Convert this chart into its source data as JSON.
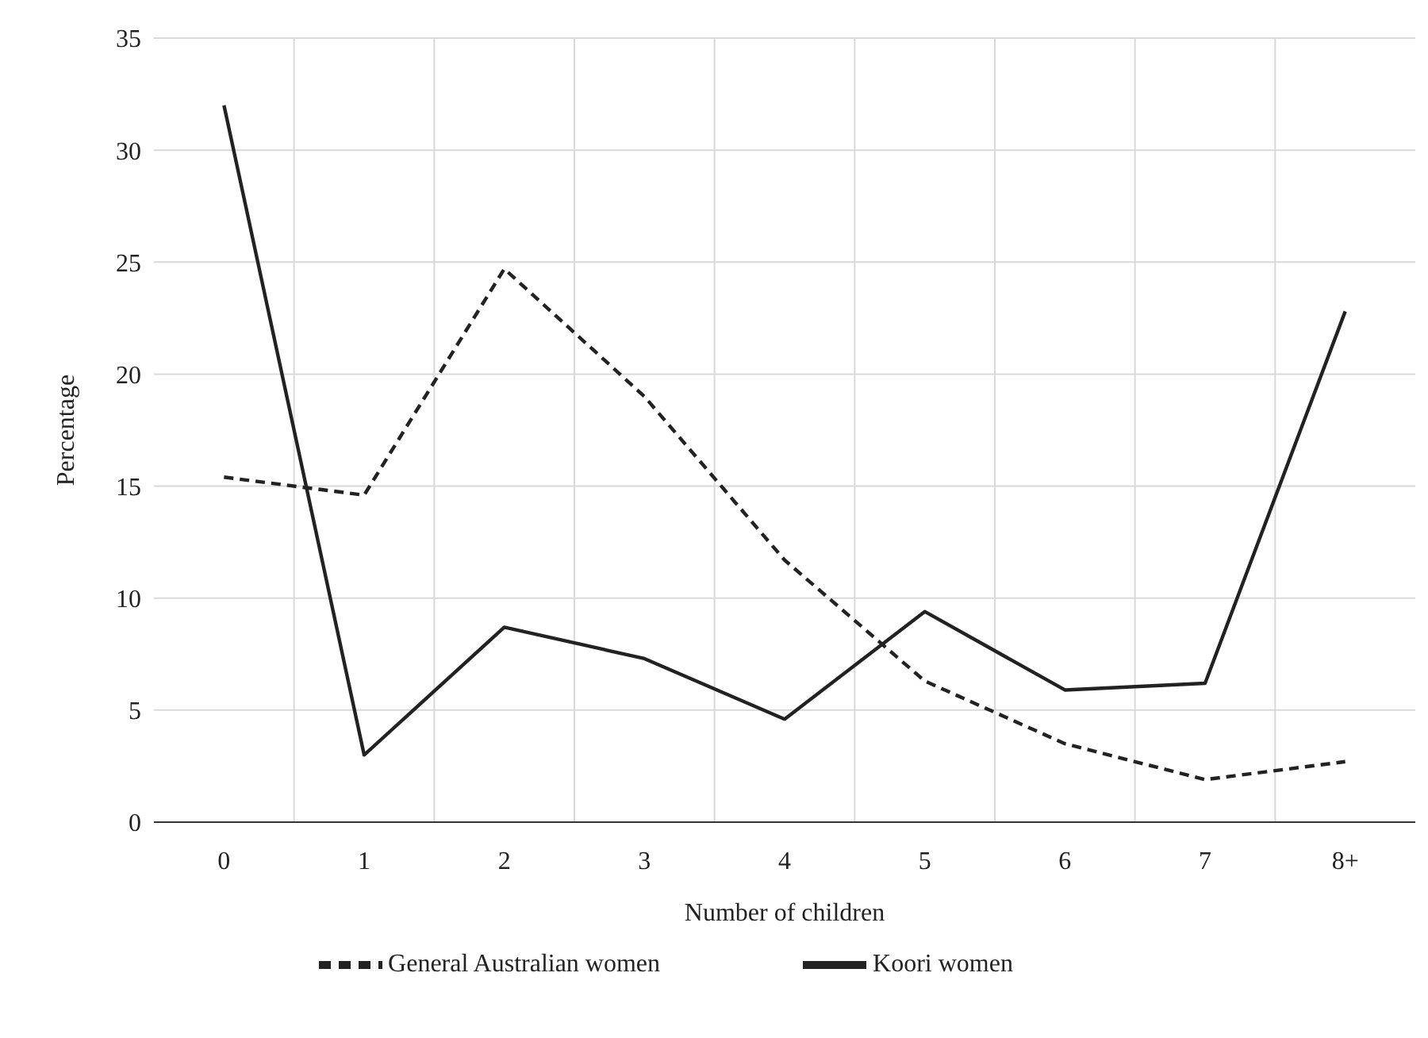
{
  "chart_data": {
    "type": "line",
    "xlabel": "Number of children",
    "ylabel": "Percentage",
    "categories": [
      "0",
      "1",
      "2",
      "3",
      "4",
      "5",
      "6",
      "7",
      "8+"
    ],
    "series": [
      {
        "name": "Koori women",
        "color": "#222222",
        "line_style": "solid",
        "values": [
          32,
          3,
          8.7,
          7.3,
          4.6,
          9.4,
          5.9,
          6.2,
          22.8
        ]
      },
      {
        "name": "General Australian women",
        "color": "#222222",
        "line_style": "dashed",
        "values": [
          15.4,
          14.6,
          24.7,
          19,
          11.7,
          6.3,
          3.5,
          1.9,
          2.7
        ]
      }
    ],
    "ylim": [
      0,
      35
    ],
    "yticks": [
      0,
      5,
      10,
      15,
      20,
      25,
      30,
      35
    ],
    "grid": true,
    "legend": "bottom",
    "marker": "none"
  }
}
